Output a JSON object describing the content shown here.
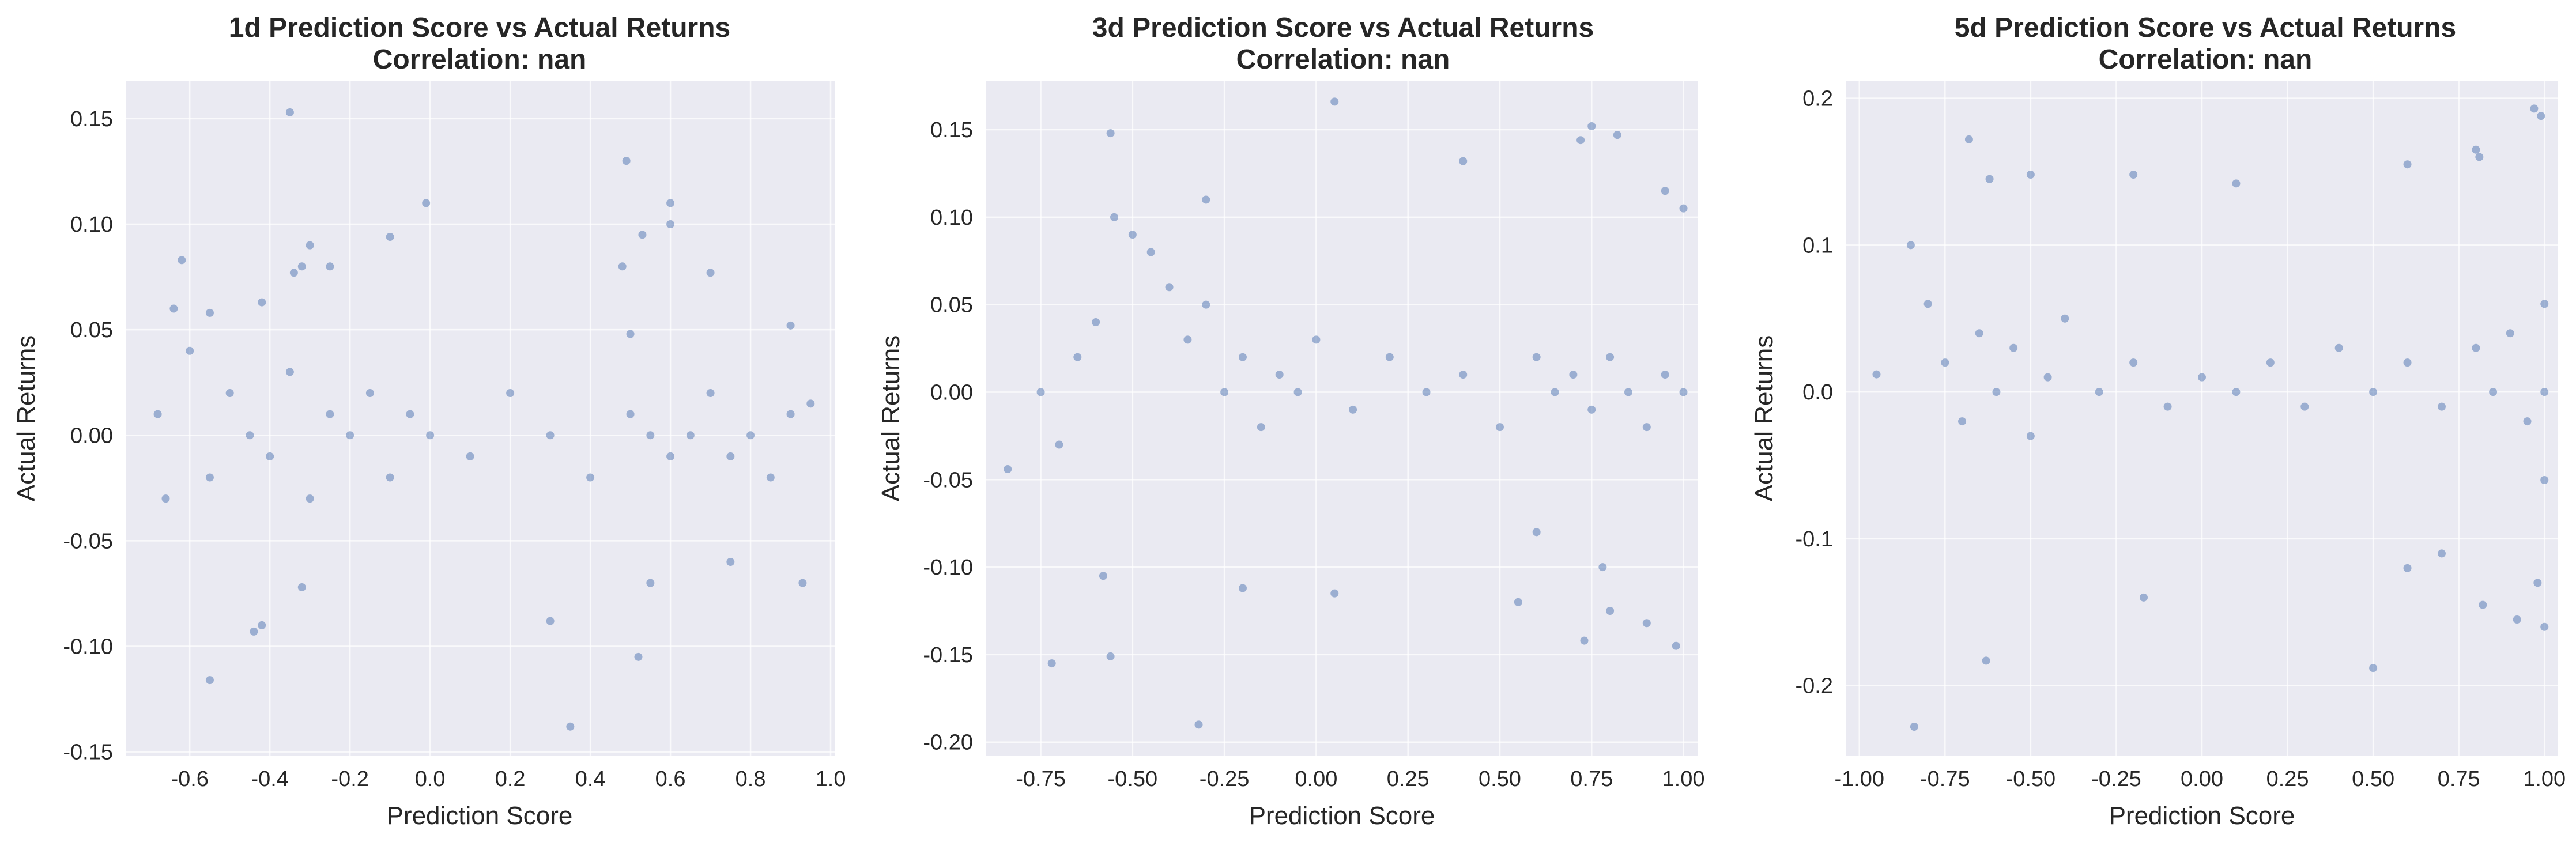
{
  "colors": {
    "points": "#4c72b0",
    "background": "#eaeaf2",
    "grid": "#ffffff",
    "text": "#262626"
  },
  "chart_data": [
    {
      "type": "scatter",
      "title": "1d Prediction Score vs Actual Returns",
      "subtitle": "Correlation: nan",
      "xlabel": "Prediction Score",
      "ylabel": "Actual Returns",
      "xlim": [
        -0.76,
        1.01
      ],
      "ylim": [
        -0.152,
        0.168
      ],
      "xticks": [
        -0.6,
        -0.4,
        -0.2,
        0.0,
        0.2,
        0.4,
        0.6,
        0.8,
        1.0
      ],
      "xtick_labels": [
        "-0.6",
        "-0.4",
        "-0.2",
        "0.0",
        "0.2",
        "0.4",
        "0.6",
        "0.8",
        "1.0"
      ],
      "yticks": [
        -0.15,
        -0.1,
        -0.05,
        0.0,
        0.05,
        0.1,
        0.15
      ],
      "ytick_labels": [
        "-0.15",
        "-0.10",
        "-0.05",
        "0.00",
        "0.05",
        "0.10",
        "0.15"
      ],
      "grid": true,
      "points_estimated": true,
      "points": [
        [
          -0.35,
          0.153
        ],
        [
          -0.62,
          0.083
        ],
        [
          -0.64,
          0.06
        ],
        [
          -0.3,
          0.09
        ],
        [
          -0.34,
          0.077
        ],
        [
          -0.32,
          0.08
        ],
        [
          -0.25,
          0.08
        ],
        [
          -0.1,
          0.094
        ],
        [
          -0.01,
          0.11
        ],
        [
          0.49,
          0.13
        ],
        [
          0.6,
          0.11
        ],
        [
          0.6,
          0.1
        ],
        [
          0.53,
          0.095
        ],
        [
          0.48,
          0.08
        ],
        [
          0.7,
          0.077
        ],
        [
          -0.42,
          0.063
        ],
        [
          -0.55,
          0.058
        ],
        [
          0.9,
          0.052
        ],
        [
          0.5,
          0.048
        ],
        [
          -0.68,
          0.01
        ],
        [
          -0.66,
          -0.03
        ],
        [
          -0.6,
          0.04
        ],
        [
          -0.55,
          -0.02
        ],
        [
          -0.5,
          0.02
        ],
        [
          -0.45,
          0.0
        ],
        [
          -0.4,
          -0.01
        ],
        [
          -0.35,
          0.03
        ],
        [
          -0.3,
          -0.03
        ],
        [
          -0.25,
          0.01
        ],
        [
          -0.2,
          0.0
        ],
        [
          -0.15,
          0.02
        ],
        [
          -0.1,
          -0.02
        ],
        [
          -0.05,
          0.01
        ],
        [
          0.0,
          0.0
        ],
        [
          0.1,
          -0.01
        ],
        [
          0.2,
          0.02
        ],
        [
          0.3,
          0.0
        ],
        [
          0.4,
          -0.02
        ],
        [
          0.5,
          0.01
        ],
        [
          0.55,
          0.0
        ],
        [
          0.6,
          -0.01
        ],
        [
          0.65,
          0.0
        ],
        [
          0.7,
          0.02
        ],
        [
          0.75,
          -0.01
        ],
        [
          0.8,
          0.0
        ],
        [
          0.85,
          -0.02
        ],
        [
          0.9,
          0.01
        ],
        [
          0.95,
          0.015
        ],
        [
          -0.55,
          -0.116
        ],
        [
          -0.44,
          -0.093
        ],
        [
          -0.42,
          -0.09
        ],
        [
          -0.32,
          -0.072
        ],
        [
          0.3,
          -0.088
        ],
        [
          0.35,
          -0.138
        ],
        [
          0.52,
          -0.105
        ],
        [
          0.55,
          -0.07
        ],
        [
          0.93,
          -0.07
        ],
        [
          0.75,
          -0.06
        ]
      ]
    },
    {
      "type": "scatter",
      "title": "3d Prediction Score vs Actual Returns",
      "subtitle": "Correlation: nan",
      "xlabel": "Prediction Score",
      "ylabel": "Actual Returns",
      "xlim": [
        -0.9,
        1.04
      ],
      "ylim": [
        -0.208,
        0.178
      ],
      "xticks": [
        -0.75,
        -0.5,
        -0.25,
        0.0,
        0.25,
        0.5,
        0.75,
        1.0
      ],
      "xtick_labels": [
        "-0.75",
        "-0.50",
        "-0.25",
        "0.00",
        "0.25",
        "0.50",
        "0.75",
        "1.00"
      ],
      "yticks": [
        -0.2,
        -0.15,
        -0.1,
        -0.05,
        0.0,
        0.05,
        0.1,
        0.15
      ],
      "ytick_labels": [
        "-0.20",
        "-0.15",
        "-0.10",
        "-0.05",
        "0.00",
        "0.05",
        "0.10",
        "0.15"
      ],
      "grid": true,
      "points_estimated": true,
      "points": [
        [
          0.05,
          0.166
        ],
        [
          -0.56,
          0.148
        ],
        [
          0.4,
          0.132
        ],
        [
          0.75,
          0.152
        ],
        [
          0.82,
          0.147
        ],
        [
          0.72,
          0.144
        ],
        [
          -0.3,
          0.11
        ],
        [
          0.95,
          0.115
        ],
        [
          1.0,
          0.105
        ],
        [
          -0.55,
          0.1
        ],
        [
          -0.5,
          0.09
        ],
        [
          -0.45,
          0.08
        ],
        [
          -0.4,
          0.06
        ],
        [
          -0.35,
          0.03
        ],
        [
          -0.3,
          0.05
        ],
        [
          -0.25,
          0.0
        ],
        [
          -0.2,
          0.02
        ],
        [
          -0.15,
          -0.02
        ],
        [
          -0.1,
          0.01
        ],
        [
          -0.05,
          0.0
        ],
        [
          0.0,
          0.03
        ],
        [
          0.1,
          -0.01
        ],
        [
          0.2,
          0.02
        ],
        [
          0.3,
          0.0
        ],
        [
          0.4,
          0.01
        ],
        [
          0.5,
          -0.02
        ],
        [
          0.6,
          0.02
        ],
        [
          0.65,
          0.0
        ],
        [
          0.7,
          0.01
        ],
        [
          0.75,
          -0.01
        ],
        [
          0.8,
          0.02
        ],
        [
          0.85,
          0.0
        ],
        [
          0.9,
          -0.02
        ],
        [
          0.95,
          0.01
        ],
        [
          1.0,
          0.0
        ],
        [
          -0.7,
          -0.03
        ],
        [
          -0.65,
          0.02
        ],
        [
          -0.6,
          0.04
        ],
        [
          -0.75,
          0.0
        ],
        [
          -0.84,
          -0.044
        ],
        [
          -0.72,
          -0.155
        ],
        [
          -0.56,
          -0.151
        ],
        [
          -0.32,
          -0.19
        ],
        [
          -0.58,
          -0.105
        ],
        [
          -0.2,
          -0.112
        ],
        [
          0.05,
          -0.115
        ],
        [
          0.55,
          -0.12
        ],
        [
          0.8,
          -0.125
        ],
        [
          0.9,
          -0.132
        ],
        [
          0.98,
          -0.145
        ],
        [
          0.73,
          -0.142
        ],
        [
          0.78,
          -0.1
        ],
        [
          0.6,
          -0.08
        ]
      ]
    },
    {
      "type": "scatter",
      "title": "5d Prediction Score vs Actual Returns",
      "subtitle": "Correlation: nan",
      "xlabel": "Prediction Score",
      "ylabel": "Actual Returns",
      "xlim": [
        -1.04,
        1.04
      ],
      "ylim": [
        -0.248,
        0.212
      ],
      "xticks": [
        -1.0,
        -0.75,
        -0.5,
        -0.25,
        0.0,
        0.25,
        0.5,
        0.75,
        1.0
      ],
      "xtick_labels": [
        "-1.00",
        "-0.75",
        "-0.50",
        "-0.25",
        "0.00",
        "0.25",
        "0.50",
        "0.75",
        "1.00"
      ],
      "yticks": [
        -0.2,
        -0.1,
        0.0,
        0.1,
        0.2
      ],
      "ytick_labels": [
        "-0.2",
        "-0.1",
        "0.0",
        "0.1",
        "0.2"
      ],
      "grid": true,
      "points_estimated": true,
      "points": [
        [
          0.97,
          0.193
        ],
        [
          0.99,
          0.188
        ],
        [
          -0.68,
          0.172
        ],
        [
          0.8,
          0.165
        ],
        [
          0.81,
          0.16
        ],
        [
          0.6,
          0.155
        ],
        [
          -0.62,
          0.145
        ],
        [
          -0.5,
          0.148
        ],
        [
          -0.2,
          0.148
        ],
        [
          0.1,
          0.142
        ],
        [
          -0.85,
          0.1
        ],
        [
          -0.8,
          0.06
        ],
        [
          -0.75,
          0.02
        ],
        [
          -0.7,
          -0.02
        ],
        [
          -0.65,
          0.04
        ],
        [
          -0.6,
          0.0
        ],
        [
          -0.55,
          0.03
        ],
        [
          -0.5,
          -0.03
        ],
        [
          -0.45,
          0.01
        ],
        [
          -0.4,
          0.05
        ],
        [
          -0.3,
          0.0
        ],
        [
          -0.2,
          0.02
        ],
        [
          -0.1,
          -0.01
        ],
        [
          0.0,
          0.01
        ],
        [
          0.1,
          0.0
        ],
        [
          0.2,
          0.02
        ],
        [
          0.3,
          -0.01
        ],
        [
          0.4,
          0.03
        ],
        [
          0.5,
          0.0
        ],
        [
          0.6,
          0.02
        ],
        [
          0.7,
          -0.01
        ],
        [
          0.8,
          0.03
        ],
        [
          0.85,
          0.0
        ],
        [
          0.9,
          0.04
        ],
        [
          0.95,
          -0.02
        ],
        [
          1.0,
          0.0
        ],
        [
          1.0,
          0.06
        ],
        [
          1.0,
          -0.06
        ],
        [
          -0.95,
          0.012
        ],
        [
          -0.84,
          -0.228
        ],
        [
          -0.63,
          -0.183
        ],
        [
          0.5,
          -0.188
        ],
        [
          -0.17,
          -0.14
        ],
        [
          0.6,
          -0.12
        ],
        [
          0.82,
          -0.145
        ],
        [
          0.92,
          -0.155
        ],
        [
          1.0,
          -0.16
        ],
        [
          0.98,
          -0.13
        ],
        [
          0.7,
          -0.11
        ]
      ]
    }
  ]
}
